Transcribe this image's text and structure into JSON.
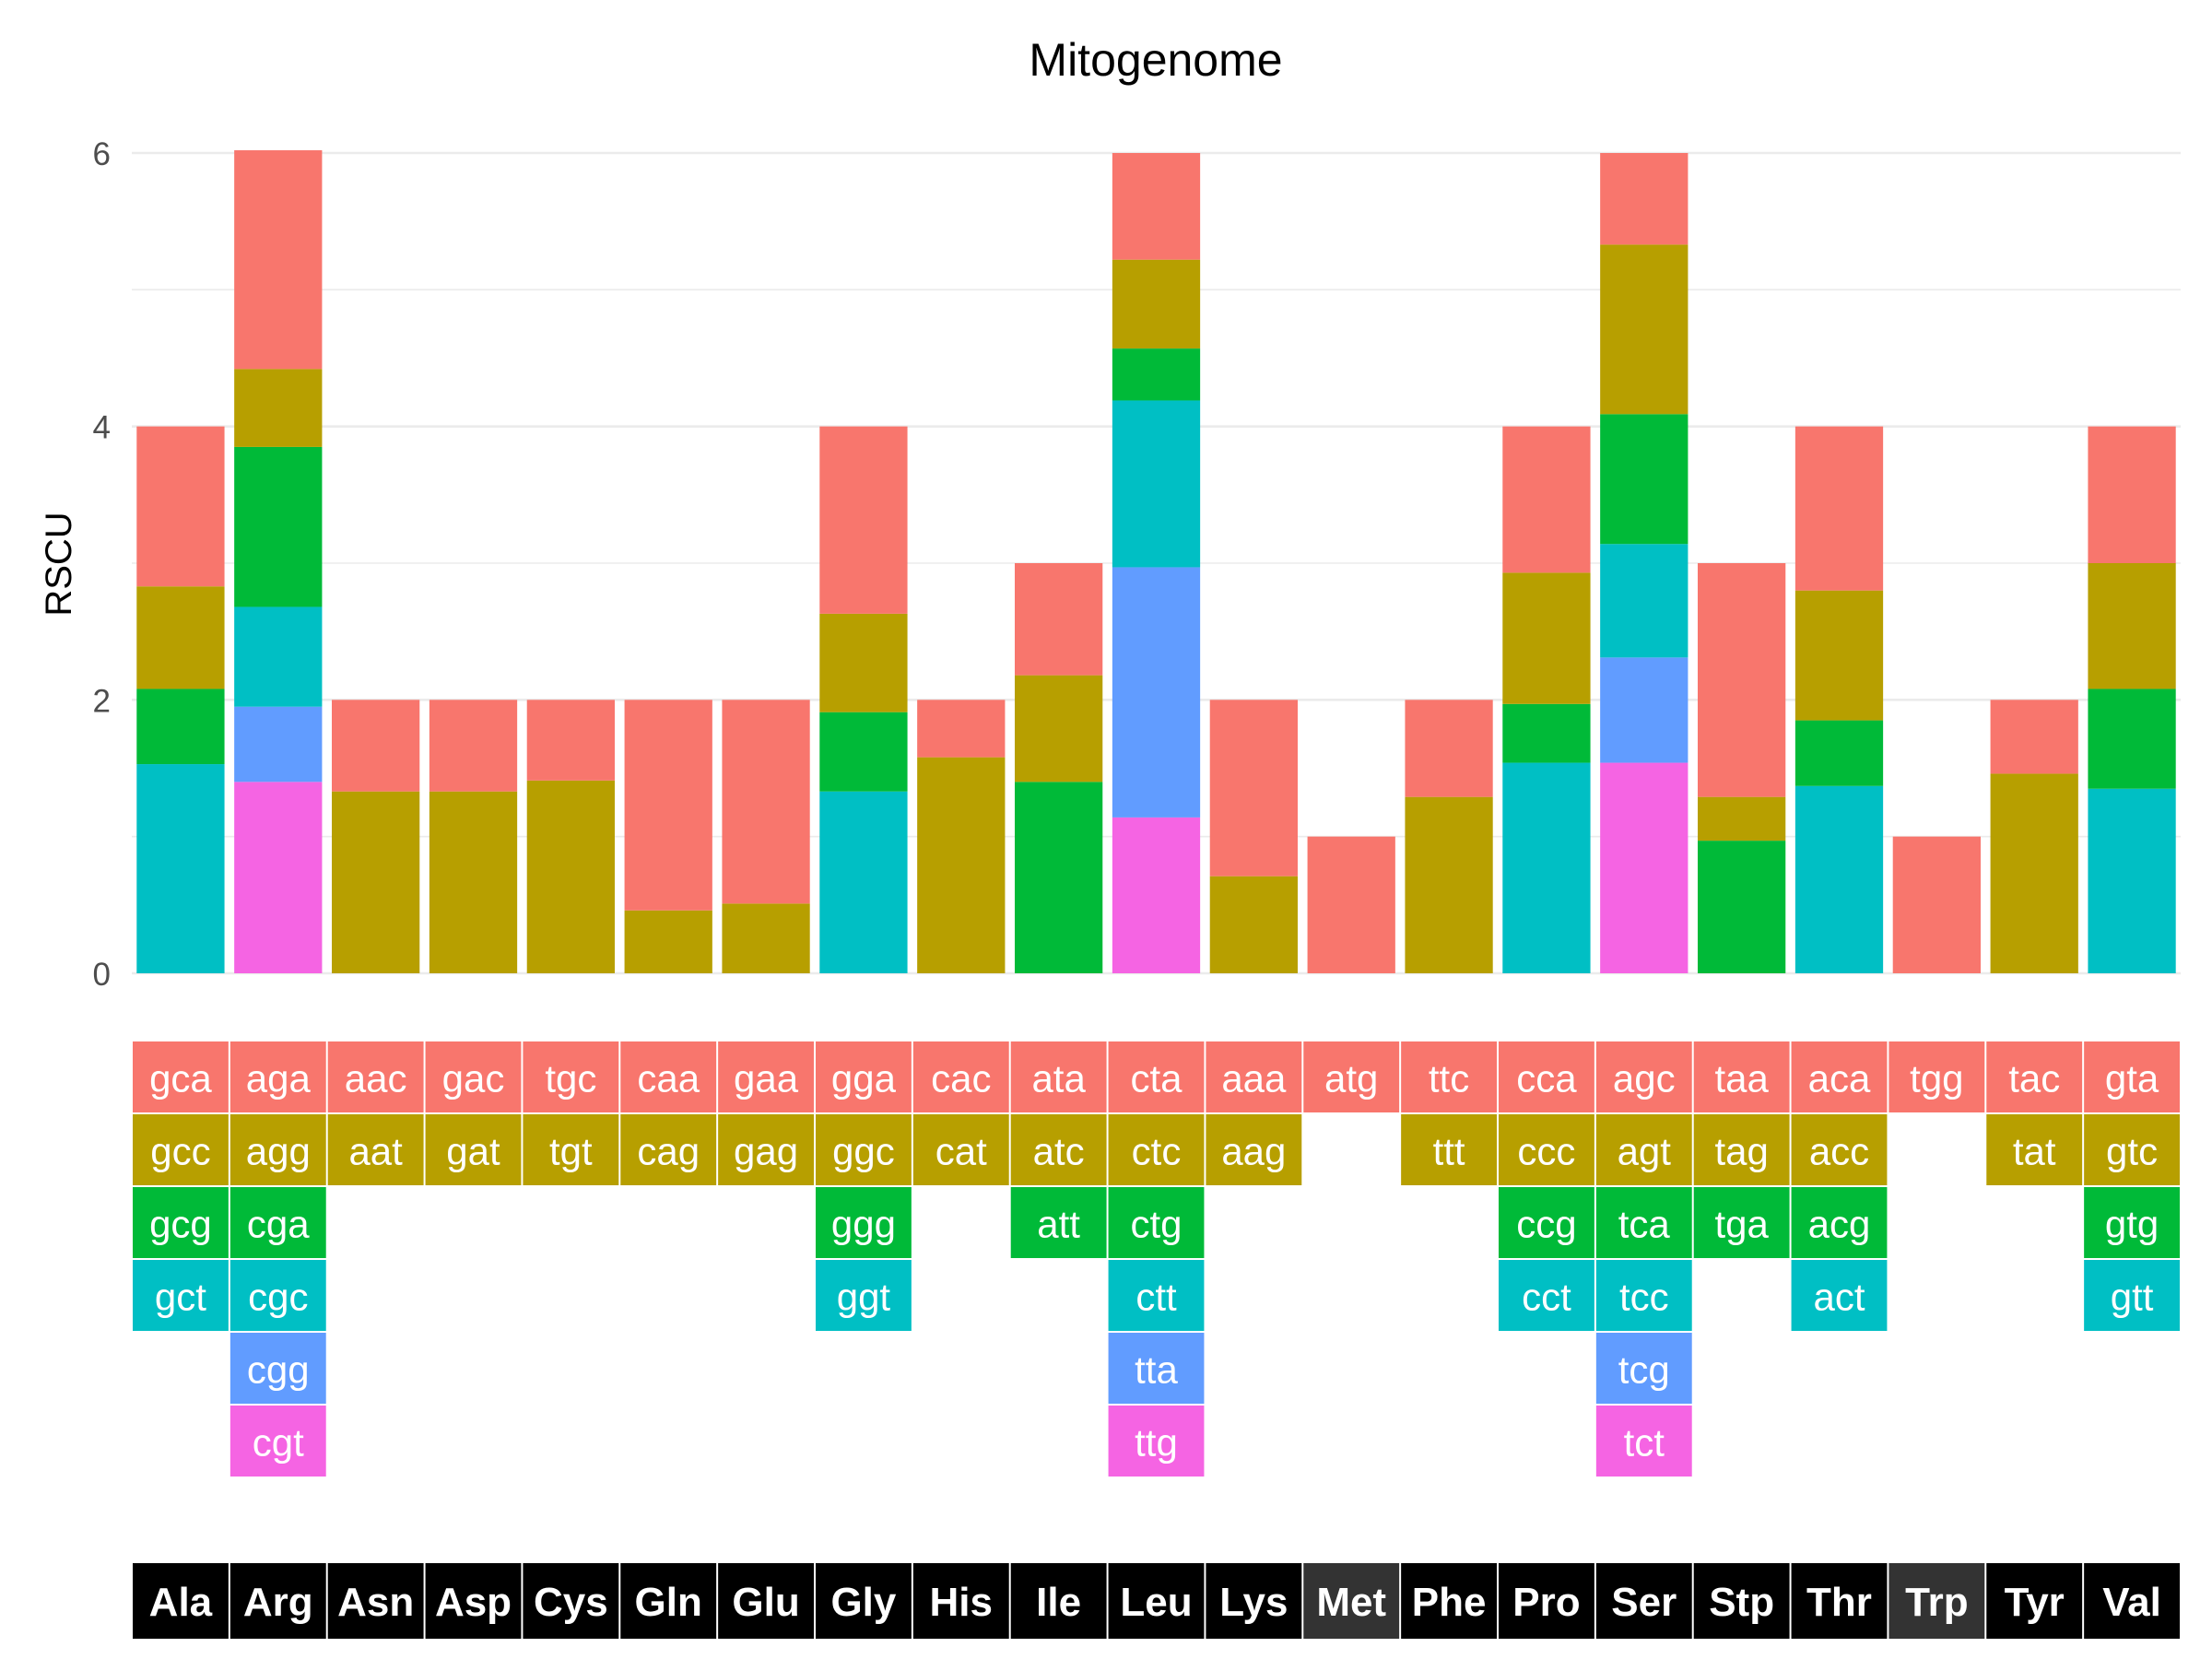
{
  "chart_data": {
    "type": "bar",
    "title": "Mitogenome",
    "xlabel": "",
    "ylabel": "RSCU",
    "ylim": [
      0,
      6
    ],
    "yticks": [
      0,
      2,
      4,
      6
    ],
    "grid": true,
    "stacked": true,
    "layer_colors": [
      "#F8766D",
      "#B79F00",
      "#00BA38",
      "#00BFC4",
      "#619CFF",
      "#F564E3"
    ],
    "amino_acids": [
      {
        "name": "Ala",
        "codons": [
          {
            "codon": "gca",
            "rscu": 1.17
          },
          {
            "codon": "gcc",
            "rscu": 0.75
          },
          {
            "codon": "gcg",
            "rscu": 0.55
          },
          {
            "codon": "gct",
            "rscu": 1.53
          }
        ]
      },
      {
        "name": "Arg",
        "codons": [
          {
            "codon": "aga",
            "rscu": 1.6
          },
          {
            "codon": "agg",
            "rscu": 0.57
          },
          {
            "codon": "cga",
            "rscu": 1.17
          },
          {
            "codon": "cgc",
            "rscu": 0.73
          },
          {
            "codon": "cgg",
            "rscu": 0.55
          },
          {
            "codon": "cgt",
            "rscu": 1.4
          }
        ]
      },
      {
        "name": "Asn",
        "codons": [
          {
            "codon": "aac",
            "rscu": 0.67
          },
          {
            "codon": "aat",
            "rscu": 1.33
          }
        ]
      },
      {
        "name": "Asp",
        "codons": [
          {
            "codon": "gac",
            "rscu": 0.67
          },
          {
            "codon": "gat",
            "rscu": 1.33
          }
        ]
      },
      {
        "name": "Cys",
        "codons": [
          {
            "codon": "tgc",
            "rscu": 0.59
          },
          {
            "codon": "tgt",
            "rscu": 1.41
          }
        ]
      },
      {
        "name": "Gln",
        "codons": [
          {
            "codon": "caa",
            "rscu": 1.54
          },
          {
            "codon": "cag",
            "rscu": 0.46
          }
        ]
      },
      {
        "name": "Glu",
        "codons": [
          {
            "codon": "gaa",
            "rscu": 1.49
          },
          {
            "codon": "gag",
            "rscu": 0.51
          }
        ]
      },
      {
        "name": "Gly",
        "codons": [
          {
            "codon": "gga",
            "rscu": 1.37
          },
          {
            "codon": "ggc",
            "rscu": 0.72
          },
          {
            "codon": "ggg",
            "rscu": 0.58
          },
          {
            "codon": "ggt",
            "rscu": 1.33
          }
        ]
      },
      {
        "name": "His",
        "codons": [
          {
            "codon": "cac",
            "rscu": 0.42
          },
          {
            "codon": "cat",
            "rscu": 1.58
          }
        ]
      },
      {
        "name": "Ile",
        "codons": [
          {
            "codon": "ata",
            "rscu": 0.82
          },
          {
            "codon": "atc",
            "rscu": 0.78
          },
          {
            "codon": "att",
            "rscu": 1.4
          }
        ]
      },
      {
        "name": "Leu",
        "codons": [
          {
            "codon": "cta",
            "rscu": 0.78
          },
          {
            "codon": "ctc",
            "rscu": 0.65
          },
          {
            "codon": "ctg",
            "rscu": 0.38
          },
          {
            "codon": "ctt",
            "rscu": 1.22
          },
          {
            "codon": "tta",
            "rscu": 1.83
          },
          {
            "codon": "ttg",
            "rscu": 1.14
          }
        ]
      },
      {
        "name": "Lys",
        "codons": [
          {
            "codon": "aaa",
            "rscu": 1.29
          },
          {
            "codon": "aag",
            "rscu": 0.71
          }
        ]
      },
      {
        "name": "Met",
        "codons": [
          {
            "codon": "atg",
            "rscu": 1.0
          }
        ]
      },
      {
        "name": "Phe",
        "codons": [
          {
            "codon": "ttc",
            "rscu": 0.71
          },
          {
            "codon": "ttt",
            "rscu": 1.29
          }
        ]
      },
      {
        "name": "Pro",
        "codons": [
          {
            "codon": "cca",
            "rscu": 1.07
          },
          {
            "codon": "ccc",
            "rscu": 0.96
          },
          {
            "codon": "ccg",
            "rscu": 0.43
          },
          {
            "codon": "cct",
            "rscu": 1.54
          }
        ]
      },
      {
        "name": "Ser",
        "codons": [
          {
            "codon": "agc",
            "rscu": 0.67
          },
          {
            "codon": "agt",
            "rscu": 1.24
          },
          {
            "codon": "tca",
            "rscu": 0.95
          },
          {
            "codon": "tcc",
            "rscu": 0.83
          },
          {
            "codon": "tcg",
            "rscu": 0.77
          },
          {
            "codon": "tct",
            "rscu": 1.54
          }
        ]
      },
      {
        "name": "Stp",
        "codons": [
          {
            "codon": "taa",
            "rscu": 1.71
          },
          {
            "codon": "tag",
            "rscu": 0.32
          },
          {
            "codon": "tga",
            "rscu": 0.97
          }
        ]
      },
      {
        "name": "Thr",
        "codons": [
          {
            "codon": "aca",
            "rscu": 1.2
          },
          {
            "codon": "acc",
            "rscu": 0.95
          },
          {
            "codon": "acg",
            "rscu": 0.48
          },
          {
            "codon": "act",
            "rscu": 1.37
          }
        ]
      },
      {
        "name": "Trp",
        "codons": [
          {
            "codon": "tgg",
            "rscu": 1.0
          }
        ]
      },
      {
        "name": "Tyr",
        "codons": [
          {
            "codon": "tac",
            "rscu": 0.54
          },
          {
            "codon": "tat",
            "rscu": 1.46
          }
        ]
      },
      {
        "name": "Val",
        "codons": [
          {
            "codon": "gta",
            "rscu": 1.0
          },
          {
            "codon": "gtc",
            "rscu": 0.92
          },
          {
            "codon": "gtg",
            "rscu": 0.73
          },
          {
            "codon": "gtt",
            "rscu": 1.35
          }
        ]
      }
    ],
    "aa_label_bg": "#000000",
    "aa_label_bg_single": "#333333"
  }
}
